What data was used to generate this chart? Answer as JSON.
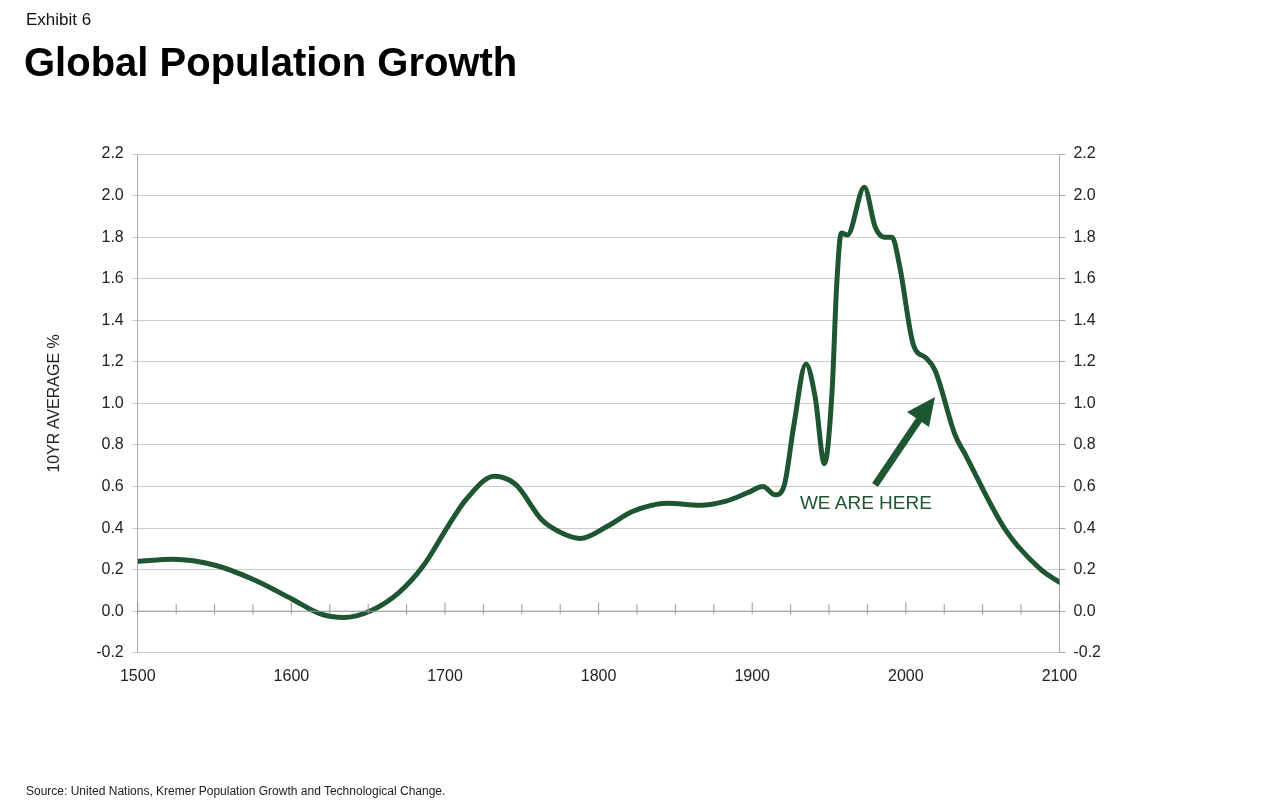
{
  "chart_data": {
    "type": "line",
    "subtitle": "Exhibit 6",
    "title": "Global Population Growth",
    "ylabel": "10YR AVERAGE %",
    "x": [
      1500,
      1523,
      1551,
      1576,
      1600,
      1618,
      1634,
      1651,
      1670,
      1686,
      1702,
      1714,
      1732,
      1746,
      1763,
      1775,
      1788,
      1806,
      1822,
      1845,
      1866,
      1883,
      1897,
      1907,
      1915,
      1921,
      1927,
      1935,
      1941,
      1947,
      1952,
      1955,
      1958,
      1962,
      1973,
      1980,
      1986,
      1991,
      1996,
      2005,
      2013,
      2019,
      2032,
      2039,
      2065,
      2088,
      2100
    ],
    "series": [
      {
        "color": "#1e5631",
        "values": [
          0.24,
          0.25,
          0.22,
          0.15,
          0.06,
          -0.01,
          -0.03,
          0.0,
          0.09,
          0.22,
          0.41,
          0.54,
          0.65,
          0.61,
          0.44,
          0.38,
          0.35,
          0.41,
          0.48,
          0.52,
          0.51,
          0.53,
          0.57,
          0.6,
          0.56,
          0.61,
          0.89,
          1.19,
          1.03,
          0.71,
          1.06,
          1.57,
          1.82,
          1.81,
          2.04,
          1.85,
          1.8,
          1.8,
          1.66,
          1.28,
          1.22,
          1.16,
          0.85,
          0.75,
          0.39,
          0.2,
          0.14
        ]
      }
    ],
    "xlim": [
      1500,
      2100
    ],
    "xticks": [
      1500,
      {
        "value": 1525,
        "label": null
      },
      {
        "value": 1550,
        "label": null
      },
      {
        "value": 1575,
        "label": null
      },
      1600,
      {
        "value": 1625,
        "label": null
      },
      {
        "value": 1650,
        "label": null
      },
      {
        "value": 1675,
        "label": null
      },
      1700,
      {
        "value": 1725,
        "label": null
      },
      {
        "value": 1750,
        "label": null
      },
      {
        "value": 1775,
        "label": null
      },
      1800,
      {
        "value": 1825,
        "label": null
      },
      {
        "value": 1850,
        "label": null
      },
      {
        "value": 1875,
        "label": null
      },
      1900,
      {
        "value": 1925,
        "label": null
      },
      {
        "value": 1950,
        "label": null
      },
      {
        "value": 1975,
        "label": null
      },
      2000,
      {
        "value": 2025,
        "label": null
      },
      {
        "value": 2050,
        "label": null
      },
      {
        "value": 2075,
        "label": null
      },
      2100
    ],
    "ylim": [
      -0.2,
      2.2
    ],
    "yticks": [
      -0.2,
      {
        "value": 0,
        "label": "0.0"
      },
      0.2,
      0.4,
      0.6,
      0.8,
      {
        "value": 1,
        "label": "1.0"
      },
      1.2,
      1.4,
      1.6,
      1.8,
      {
        "value": 2,
        "label": "2.0"
      },
      2.2
    ],
    "y2lim": [
      -0.2,
      2.2
    ],
    "y2ticks": [
      -0.2,
      {
        "value": 0,
        "label": "0.0"
      },
      0.2,
      0.4,
      0.6,
      0.8,
      {
        "value": 1,
        "label": "1.0"
      },
      1.2,
      1.4,
      1.6,
      1.8,
      {
        "value": 2,
        "label": "2.0"
      },
      2.2
    ],
    "grid": "y",
    "legend": false,
    "marker": "none",
    "line_style": "solid",
    "annotations": [
      "WE ARE HERE",
      "Source: United Nations, Kremer Population Growth and Technological Change."
    ]
  }
}
